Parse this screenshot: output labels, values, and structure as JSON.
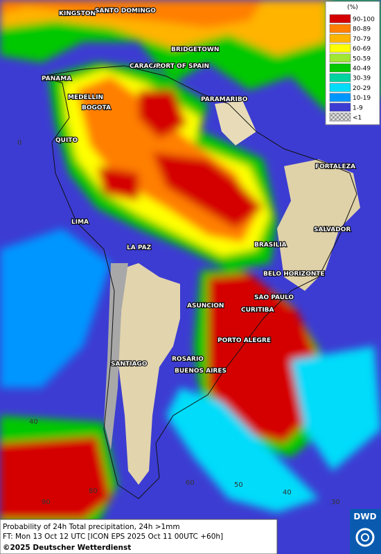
{
  "legend": {
    "title": "(%)",
    "items": [
      {
        "label": "90-100",
        "color": "#d40000"
      },
      {
        "label": "80-89",
        "color": "#ff7f00"
      },
      {
        "label": "70-79",
        "color": "#ffb400"
      },
      {
        "label": "60-69",
        "color": "#ffff00"
      },
      {
        "label": "50-59",
        "color": "#a0e632"
      },
      {
        "label": "40-49",
        "color": "#00c800"
      },
      {
        "label": "30-39",
        "color": "#00d2a0"
      },
      {
        "label": "20-29",
        "color": "#00dcfa"
      },
      {
        "label": "10-19",
        "color": "#0096ff"
      },
      {
        "label": "1-9",
        "color": "#3c3cd2"
      },
      {
        "label": "<1",
        "color": "#bdbdbd"
      }
    ]
  },
  "cities": [
    "KINGSTON",
    "SANTO DOMINGO",
    "BRIDGETOWN",
    "CARACAS",
    "PORT OF SPAIN",
    "PANAMA",
    "MEDELLIN",
    "BOGOTA",
    "PARAMARIBO",
    "QUITO",
    "FORTALEZA",
    "LIMA",
    "SALVADOR",
    "BRASILIA",
    "LA PAZ",
    "BELO HORIZONTE",
    "SAO PAULO",
    "ASUNCION",
    "CURITIBA",
    "PORTO ALEGRE",
    "ROSARIO",
    "BUENOS AIRES",
    "SANTIAGO"
  ],
  "grid_labels": [
    "0",
    "40",
    "60",
    "50",
    "40",
    "30",
    "90",
    "80"
  ],
  "footer": {
    "lines": [
      "Probability of 24h Total precipitation, 24h >1mm",
      "FT: Mon 13 Oct 12 UTC [ICON EPS 2025 Oct 11 00UTC +60h]"
    ],
    "copyright": "©2025 Deutscher Wetterdienst"
  },
  "logo": "DWD"
}
